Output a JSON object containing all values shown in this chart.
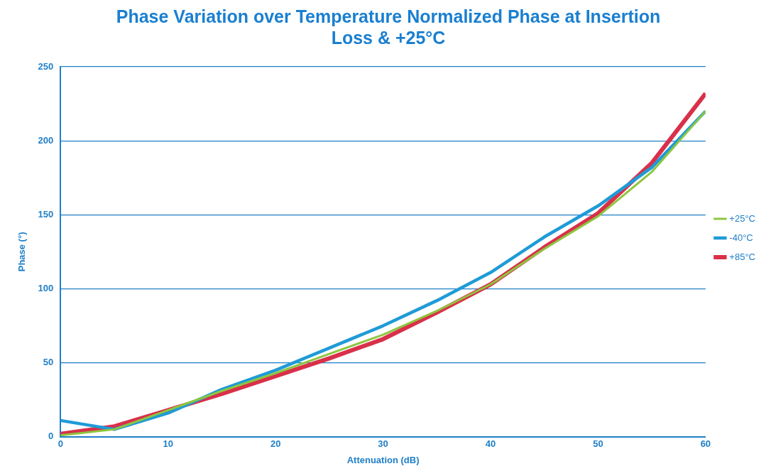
{
  "chart_data": {
    "type": "line",
    "title": [
      "Phase Variation over Temperature Normalized Phase at Insertion",
      "Loss & +25°C"
    ],
    "xlabel": "Attenuation (dB)",
    "ylabel": "Phase (°)",
    "x": [
      0,
      5,
      10,
      15,
      20,
      25,
      30,
      35,
      40,
      45,
      50,
      55,
      60
    ],
    "series": [
      {
        "name": "+25°C",
        "color": "#8dc63f",
        "values": [
          1,
          5,
          18,
          31,
          43,
          56,
          69,
          85,
          103,
          127,
          149,
          179,
          220
        ]
      },
      {
        "name": "-40°C",
        "color": "#1f9bd7",
        "values": [
          11,
          5,
          16,
          32,
          45,
          60,
          75,
          92,
          111,
          135,
          156,
          182,
          220
        ]
      },
      {
        "name": "+85°C",
        "color": "#d9304a",
        "values": [
          2,
          7,
          18,
          29,
          41,
          53,
          66,
          84,
          103,
          128,
          151,
          185,
          232
        ]
      }
    ],
    "xlim": [
      0,
      60
    ],
    "xticks": [
      0,
      10,
      20,
      30,
      40,
      50,
      60
    ],
    "ylim": [
      0,
      250
    ],
    "yticks": [
      0,
      50,
      100,
      150,
      200,
      250
    ],
    "grid": "y",
    "legend": "right",
    "marker": "none",
    "line_style": "solid"
  }
}
